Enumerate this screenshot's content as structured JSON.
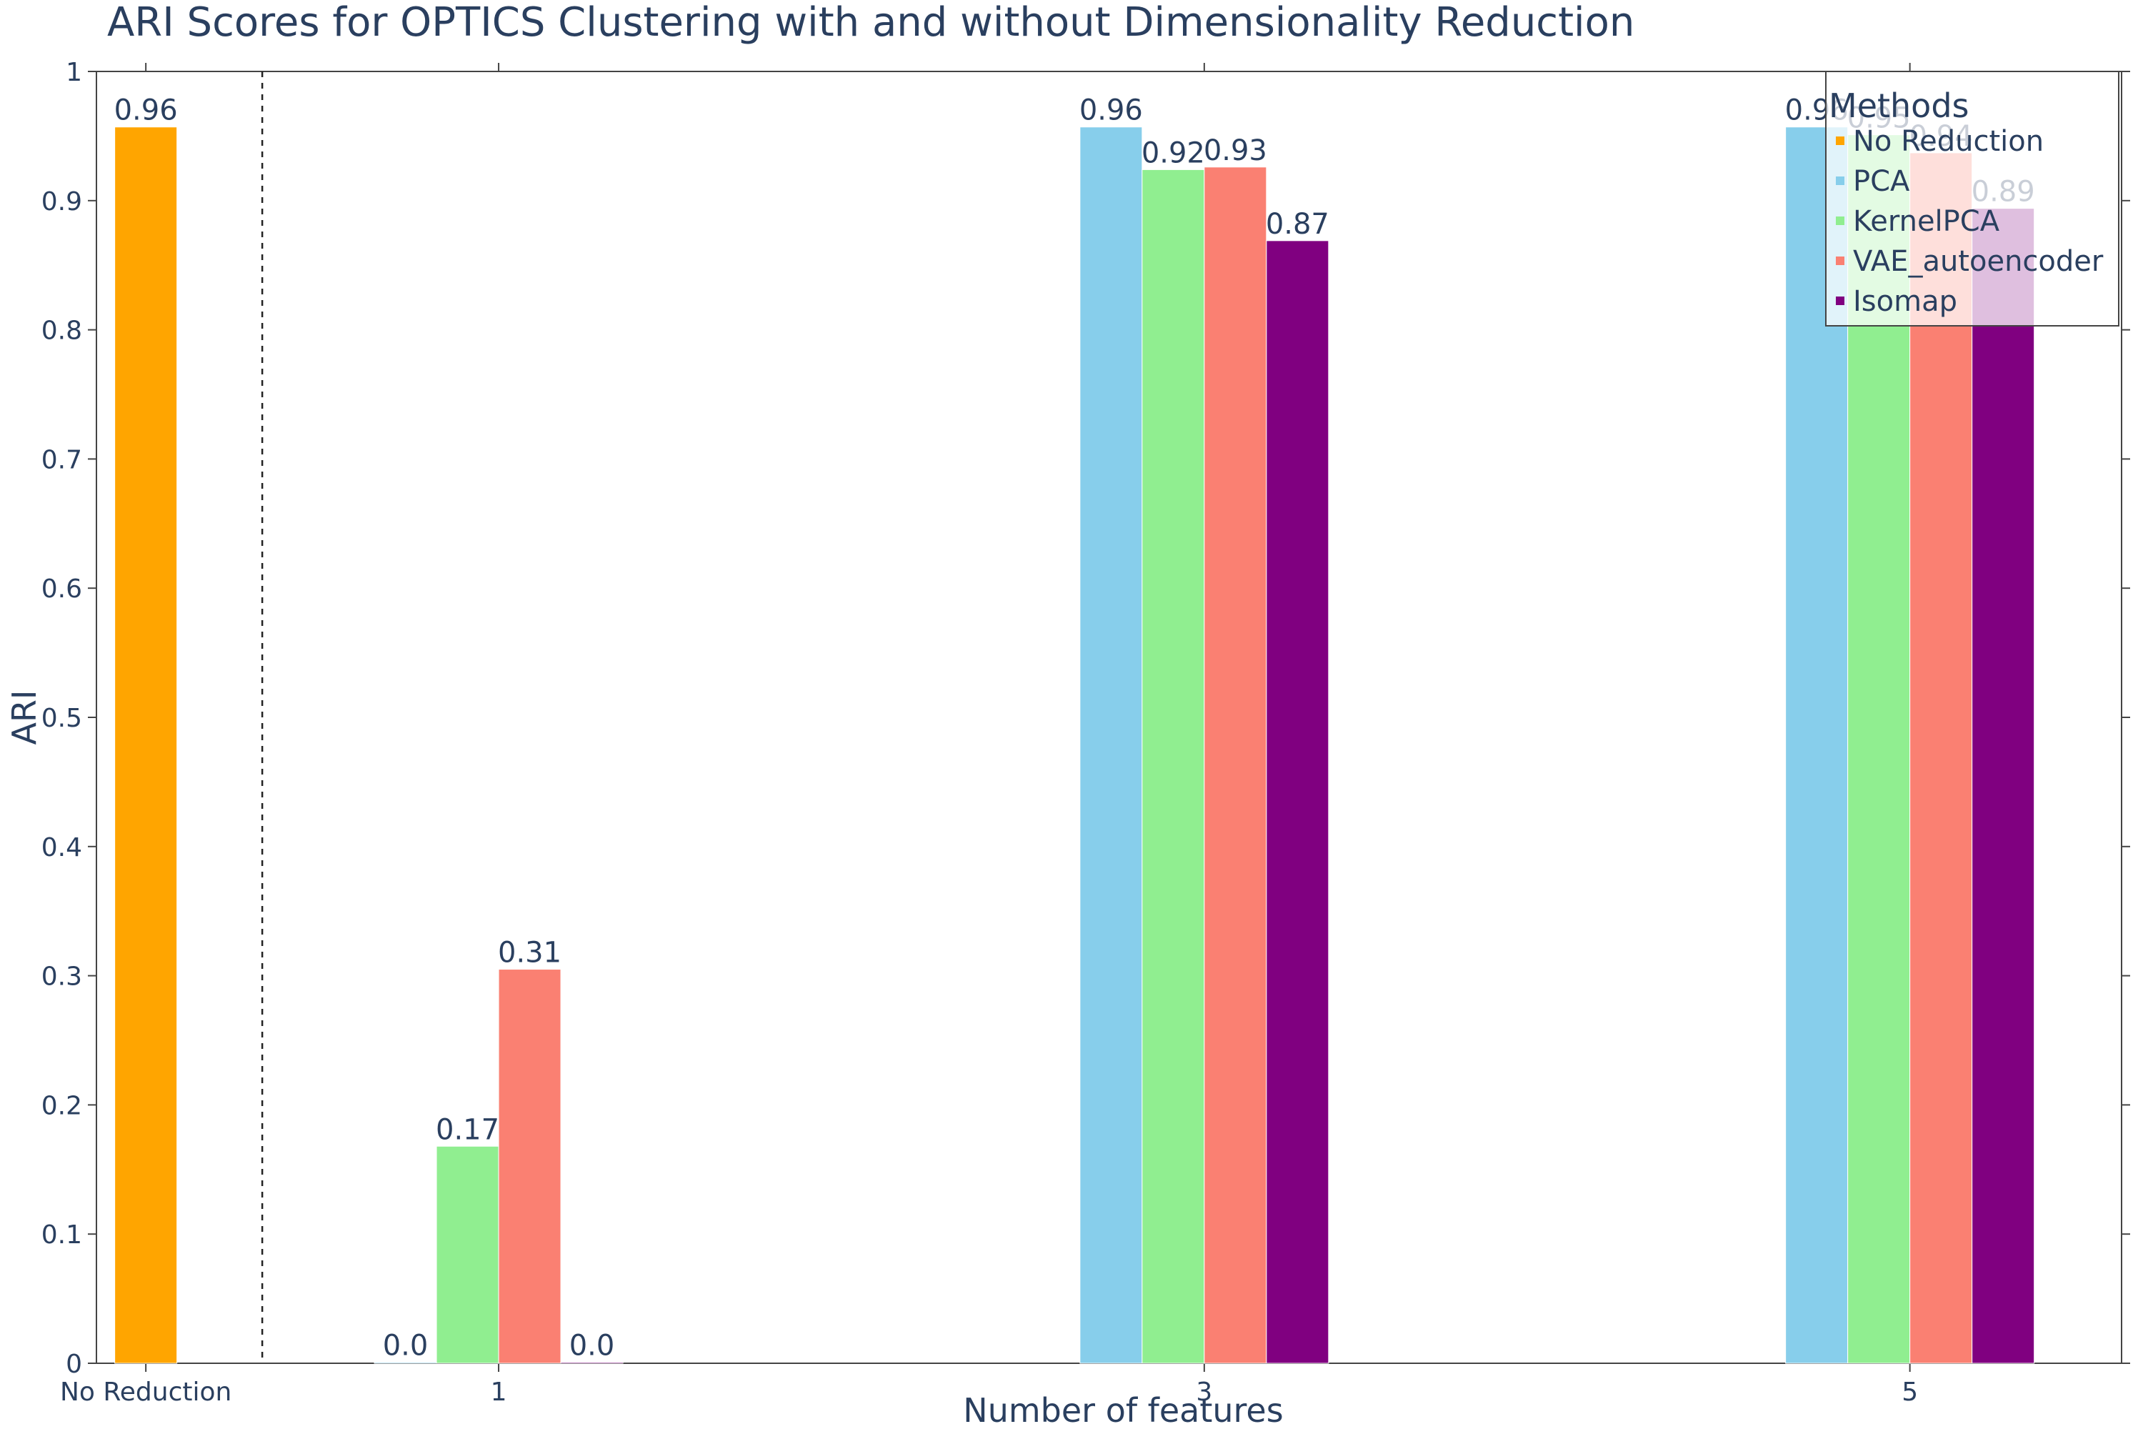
{
  "chart_data": {
    "type": "bar",
    "title": "ARI Scores for OPTICS Clustering with and without Dimensionality Reduction",
    "xlabel": "Number of features",
    "ylabel": "ARI",
    "ylim": [
      0,
      1
    ],
    "yticks": [
      "0",
      "0.1",
      "0.2",
      "0.3",
      "0.4",
      "0.5",
      "0.6",
      "0.7",
      "0.8",
      "0.9",
      "1"
    ],
    "categories": [
      "No Reduction",
      "1",
      "3",
      "5"
    ],
    "legend": {
      "title": "Methods",
      "placement": "top-right"
    },
    "separator_after_category": "No Reduction",
    "series": [
      {
        "name": "No Reduction",
        "color": "#FFA500",
        "values": [
          0.957,
          null,
          null,
          null
        ],
        "labels": [
          "0.96",
          "",
          "",
          ""
        ]
      },
      {
        "name": "PCA",
        "color": "#87CEEB",
        "values": [
          null,
          0.0,
          0.957,
          0.957
        ],
        "labels": [
          "",
          "0.0",
          "0.96",
          "0.96"
        ]
      },
      {
        "name": "KernelPCA",
        "color": "#90EE90",
        "values": [
          null,
          0.168,
          0.924,
          0.951
        ],
        "labels": [
          "",
          "0.17",
          "0.92",
          "0.95"
        ]
      },
      {
        "name": "VAE_autoencoder",
        "color": "#FA8072",
        "values": [
          null,
          0.305,
          0.926,
          0.937
        ],
        "labels": [
          "",
          "0.31",
          "0.93",
          "0.94"
        ]
      },
      {
        "name": "Isomap",
        "color": "#800080",
        "values": [
          null,
          0.0,
          0.869,
          0.894
        ],
        "labels": [
          "",
          "0.0",
          "0.87",
          "0.89"
        ]
      }
    ]
  }
}
